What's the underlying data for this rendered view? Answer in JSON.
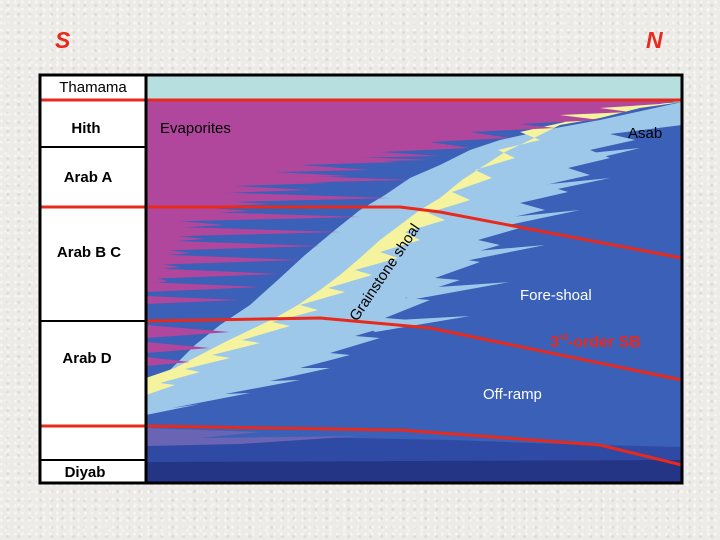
{
  "directions": {
    "south": "S",
    "north": "N"
  },
  "formations": {
    "thamama": "Thamama",
    "hith": "Hith",
    "arab_a": "Arab A",
    "arab_bc": "Arab B C",
    "arab_d": "Arab D",
    "diyab": "Diyab"
  },
  "facies": {
    "evaporites": "Evaporites",
    "asab": "Asab",
    "grainstone_shoal": "Grainstone shoal",
    "fore_shoal": "Fore-shoal",
    "off_ramp": "Off-ramp"
  },
  "sequence_boundary": {
    "prefix": "3",
    "superscript": "rd",
    "suffix": "-order SB"
  },
  "colors": {
    "thamama": "#b7dfe0",
    "evaporite": "#b0479c",
    "sabkha_yellow": "#f6f39e",
    "shoal_blue": "#9ec8ea",
    "fore_shoal_blue": "#3a60b8",
    "deep_blue": "#2a3f98",
    "sb_red": "#e8291c"
  }
}
